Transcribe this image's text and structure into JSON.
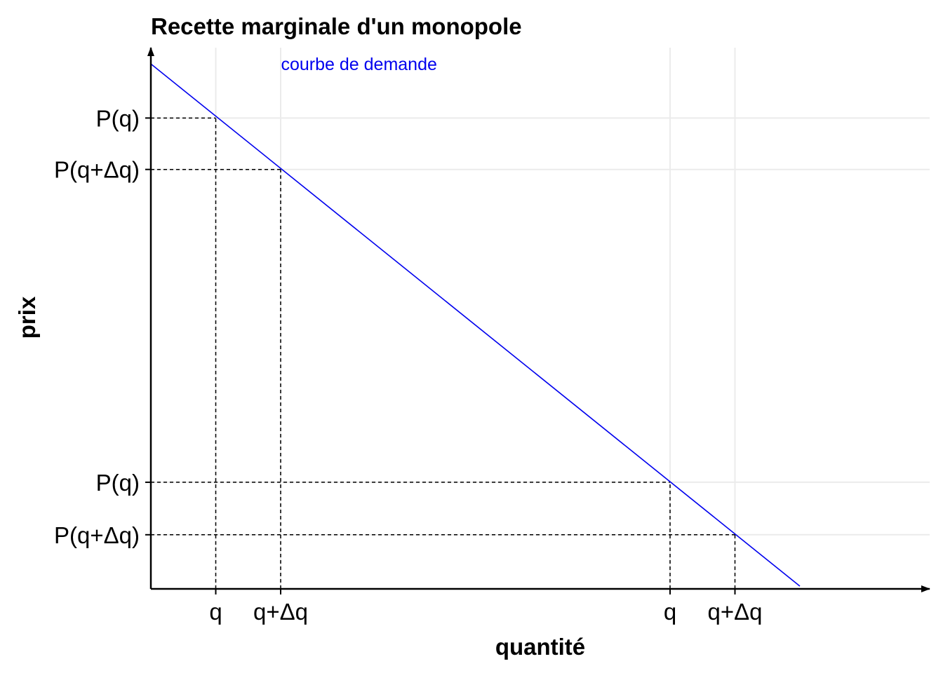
{
  "chart_data": {
    "type": "line",
    "title": "Recette marginale d'un monopole",
    "xlabel": "quantité",
    "ylabel": "prix",
    "xlim": [
      0,
      12
    ],
    "ylim": [
      0,
      10
    ],
    "grid": true,
    "colors": {
      "demand": "#0000ee",
      "axis": "#000000",
      "grid": "#ebebeb",
      "guide": "#000000"
    },
    "series": [
      {
        "x": [
          0,
          10
        ],
        "y": [
          9.7,
          0.05
        ]
      }
    ],
    "annotations": [
      {
        "text": "courbe de demande",
        "x": 3,
        "y": 9.7,
        "color": "#0000ee"
      }
    ],
    "x_ticks": [
      {
        "value": 1.0,
        "label": "q"
      },
      {
        "value": 2.0,
        "label": "q+Δq"
      },
      {
        "value": 8.0,
        "label": "q"
      },
      {
        "value": 9.0,
        "label": "q+Δq"
      }
    ],
    "y_ticks": [
      {
        "value": 8.7,
        "label": "P(q)"
      },
      {
        "value": 7.75,
        "label": "P(q+Δq)"
      },
      {
        "value": 1.97,
        "label": "P(q)"
      },
      {
        "value": 1.0,
        "label": "P(q+Δq)"
      }
    ],
    "guides": [
      {
        "x": 1.0,
        "y": 8.7
      },
      {
        "x": 2.0,
        "y": 7.75
      },
      {
        "x": 8.0,
        "y": 1.97
      },
      {
        "x": 9.0,
        "y": 1.0
      }
    ]
  }
}
